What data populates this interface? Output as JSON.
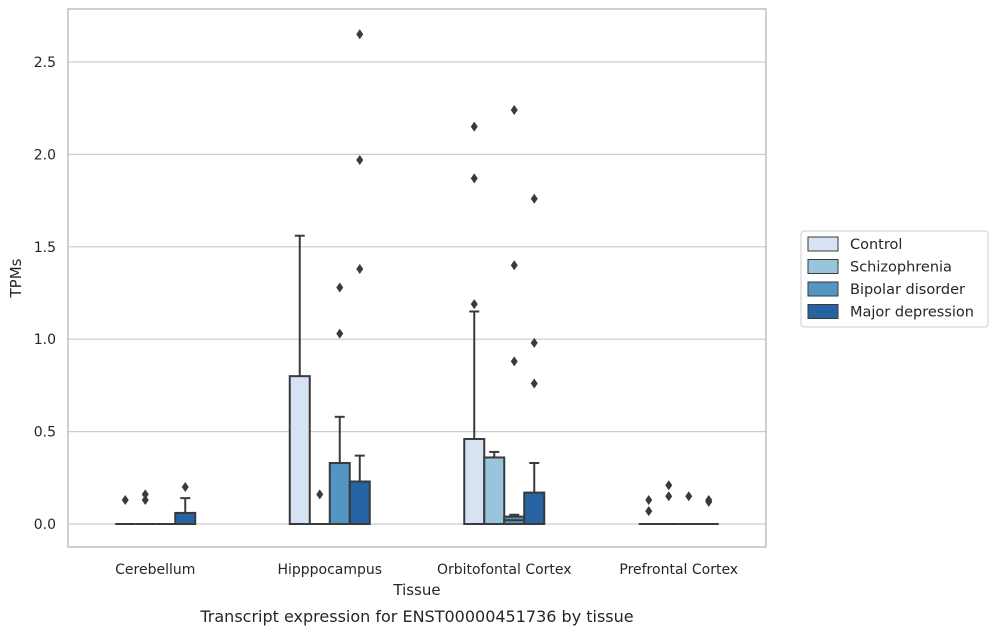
{
  "caption": "Transcript expression for ENST00000451736 by tissue",
  "colors": {
    "Control": "#d5e3f2",
    "Schizophrenia": "#9ac3dc",
    "Bipolar disorder": "#5495c4",
    "Major depression": "#2563a3",
    "edge": "#3a3a3a",
    "grid": "#cccccc",
    "frame": "#bbbbbb"
  },
  "chart_data": {
    "type": "box",
    "title": "",
    "xlabel": "Tissue",
    "ylabel": "TPMs",
    "ylim": [
      -0.13,
      2.8
    ],
    "yticks": [
      0.0,
      0.5,
      1.0,
      1.5,
      2.0,
      2.5
    ],
    "ytick_labels": [
      "0.0",
      "0.5",
      "1.0",
      "1.5",
      "2.0",
      "2.5"
    ],
    "grid": true,
    "legend_position": "right",
    "categories": [
      "Cerebellum",
      "Hipppocampus",
      "Orbitofontal Cortex",
      "Prefrontal Cortex"
    ],
    "series": [
      {
        "name": "Control",
        "boxes": [
          {
            "q1": 0,
            "median": 0,
            "q3": 0,
            "whisker_low": 0,
            "whisker_high": 0,
            "outliers": [
              0.13
            ]
          },
          {
            "q1": 0,
            "median": 0,
            "q3": 0.8,
            "whisker_low": 0,
            "whisker_high": 1.56,
            "outliers": []
          },
          {
            "q1": 0,
            "median": 0,
            "q3": 0.46,
            "whisker_low": 0,
            "whisker_high": 1.15,
            "outliers": [
              1.19,
              1.87,
              2.15
            ]
          },
          {
            "q1": 0,
            "median": 0,
            "q3": 0,
            "whisker_low": 0,
            "whisker_high": 0,
            "outliers": [
              0.07,
              0.13
            ]
          }
        ]
      },
      {
        "name": "Schizophrenia",
        "boxes": [
          {
            "q1": 0,
            "median": 0,
            "q3": 0,
            "whisker_low": 0,
            "whisker_high": 0,
            "outliers": [
              0.13,
              0.16
            ]
          },
          {
            "q1": 0,
            "median": 0,
            "q3": 0,
            "whisker_low": 0,
            "whisker_high": 0,
            "outliers": [
              0.16
            ]
          },
          {
            "q1": 0,
            "median": 0,
            "q3": 0.36,
            "whisker_low": 0,
            "whisker_high": 0.39,
            "outliers": []
          },
          {
            "q1": 0,
            "median": 0,
            "q3": 0,
            "whisker_low": 0,
            "whisker_high": 0,
            "outliers": [
              0.15,
              0.21
            ]
          }
        ]
      },
      {
        "name": "Bipolar disorder",
        "boxes": [
          {
            "q1": 0,
            "median": 0,
            "q3": 0,
            "whisker_low": 0,
            "whisker_high": 0,
            "outliers": []
          },
          {
            "q1": 0,
            "median": 0,
            "q3": 0.33,
            "whisker_low": 0,
            "whisker_high": 0.58,
            "outliers": [
              1.03,
              1.28
            ]
          },
          {
            "q1": 0,
            "median": 0.02,
            "q3": 0.04,
            "whisker_low": 0,
            "whisker_high": 0.05,
            "outliers": [
              0.88,
              1.4,
              2.24
            ]
          },
          {
            "q1": 0,
            "median": 0,
            "q3": 0,
            "whisker_low": 0,
            "whisker_high": 0,
            "outliers": [
              0.15
            ]
          }
        ]
      },
      {
        "name": "Major depression",
        "boxes": [
          {
            "q1": 0,
            "median": 0,
            "q3": 0.06,
            "whisker_low": 0,
            "whisker_high": 0.14,
            "outliers": [
              0.2
            ]
          },
          {
            "q1": 0,
            "median": 0,
            "q3": 0.23,
            "whisker_low": 0,
            "whisker_high": 0.37,
            "outliers": [
              1.38,
              1.97,
              2.65
            ]
          },
          {
            "q1": 0,
            "median": 0,
            "q3": 0.17,
            "whisker_low": 0,
            "whisker_high": 0.33,
            "outliers": [
              0.76,
              0.98,
              1.76
            ]
          },
          {
            "q1": 0,
            "median": 0,
            "q3": 0,
            "whisker_low": 0,
            "whisker_high": 0,
            "outliers": [
              0.12,
              0.13
            ]
          }
        ]
      }
    ]
  }
}
